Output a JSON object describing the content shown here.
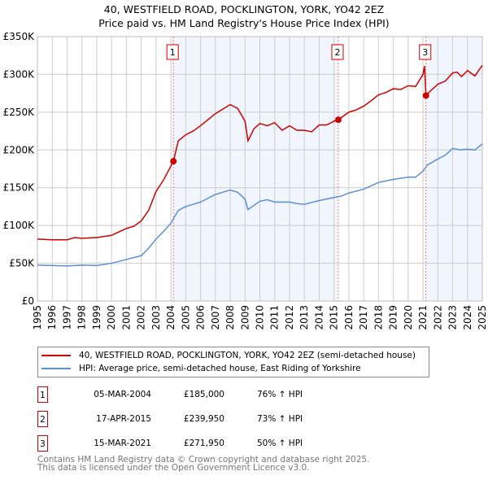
{
  "chart_data": {
    "type": "line",
    "title": "40, WESTFIELD ROAD, POCKLINGTON, YORK, YO42 2EZ",
    "subtitle": "Price paid vs. HM Land Registry's House Price Index (HPI)",
    "xlim": [
      1995,
      2025
    ],
    "ylim": [
      0,
      350000
    ],
    "y_ticks": [
      {
        "v": 0,
        "label": "£0"
      },
      {
        "v": 50000,
        "label": "£50K"
      },
      {
        "v": 100000,
        "label": "£100K"
      },
      {
        "v": 150000,
        "label": "£150K"
      },
      {
        "v": 200000,
        "label": "£200K"
      },
      {
        "v": 250000,
        "label": "£250K"
      },
      {
        "v": 300000,
        "label": "£300K"
      },
      {
        "v": 350000,
        "label": "£350K"
      }
    ],
    "x_ticks": [
      "1995",
      "1996",
      "1997",
      "1998",
      "1999",
      "2000",
      "2001",
      "2002",
      "2003",
      "2004",
      "2005",
      "2006",
      "2007",
      "2008",
      "2009",
      "2010",
      "2011",
      "2012",
      "2013",
      "2014",
      "2015",
      "2016",
      "2017",
      "2018",
      "2019",
      "2020",
      "2021",
      "2022",
      "2023",
      "2024",
      "2025"
    ],
    "grid": true,
    "series": [
      {
        "name": "40, WESTFIELD ROAD, POCKLINGTON, YORK, YO42 2EZ (semi-detached house)",
        "color": "#cc0000",
        "x": [
          1995,
          1996,
          1997,
          1997.5,
          1998,
          1999,
          2000,
          2001,
          2001.5,
          2002,
          2002.5,
          2003,
          2003.5,
          2004.17,
          2004.5,
          2005,
          2005.5,
          2006,
          2006.5,
          2007,
          2007.5,
          2008,
          2008.5,
          2009,
          2009.2,
          2009.6,
          2010,
          2010.5,
          2011,
          2011.5,
          2012,
          2012.5,
          2013,
          2013.5,
          2014,
          2014.5,
          2015,
          2015.29,
          2016,
          2016.5,
          2017,
          2017.5,
          2018,
          2018.5,
          2019,
          2019.5,
          2020,
          2020.5,
          2021,
          2021.1,
          2021.2,
          2021.5,
          2022,
          2022.5,
          2023,
          2023.3,
          2023.6,
          2024,
          2024.5,
          2025
        ],
        "values": [
          82,
          81,
          81,
          84,
          83,
          84,
          87,
          96,
          99,
          106,
          120,
          145,
          160,
          185,
          212,
          220,
          225,
          232,
          240,
          248,
          254,
          260,
          255,
          238,
          212,
          228,
          235,
          232,
          236,
          226,
          232,
          226,
          226,
          224,
          233,
          233,
          238,
          240,
          250,
          253,
          258,
          265,
          273,
          276,
          281,
          280,
          285,
          284,
          300,
          311,
          272,
          278,
          287,
          291,
          302,
          303,
          297,
          305,
          298,
          312
        ],
        "unit": "thousand GBP"
      },
      {
        "name": "HPI: Average price, semi-detached house, East Riding of Yorkshire",
        "color": "#5b8fd4",
        "x": [
          1995,
          1997,
          1998,
          1999,
          2000,
          2001,
          2002,
          2002.5,
          2003,
          2003.5,
          2004,
          2004.5,
          2005,
          2006,
          2007,
          2008,
          2008.5,
          2009,
          2009.2,
          2010,
          2010.5,
          2011,
          2012,
          2012.5,
          2013,
          2014,
          2015,
          2015.5,
          2016,
          2017,
          2018,
          2019,
          2020,
          2020.5,
          2021,
          2021.3,
          2022,
          2022.5,
          2023,
          2023.5,
          2024,
          2024.5,
          2025
        ],
        "values": [
          47.5,
          46.5,
          47.5,
          47,
          50,
          55,
          60,
          70,
          82,
          92,
          103,
          120,
          125,
          131,
          141,
          147,
          144,
          135,
          121,
          132,
          134,
          131,
          131,
          129,
          128,
          133,
          137,
          139,
          143,
          148,
          157,
          161,
          164,
          164,
          172,
          180,
          188,
          193,
          202,
          200,
          201,
          200,
          208
        ],
        "unit": "thousand GBP"
      }
    ],
    "sales": [
      {
        "label": "1",
        "x": 2004.17,
        "value": 185000,
        "date": "05-MAR-2004",
        "price": "£185,000",
        "hpi": "76% ↑ HPI"
      },
      {
        "label": "2",
        "x": 2015.29,
        "value": 239950,
        "date": "17-APR-2015",
        "price": "£239,950",
        "hpi": "73% ↑ HPI"
      },
      {
        "label": "3",
        "x": 2021.2,
        "value": 271950,
        "date": "15-MAR-2021",
        "price": "£271,950",
        "hpi": "50% ↑ HPI"
      }
    ],
    "shaded_ranges": [
      [
        2004.17,
        2015.29
      ],
      [
        2021.2,
        2025
      ]
    ],
    "legend_position": "bottom"
  },
  "footer": {
    "line1": "Contains HM Land Registry data © Crown copyright and database right 2025.",
    "line2": "This data is licensed under the Open Government Licence v3.0."
  }
}
